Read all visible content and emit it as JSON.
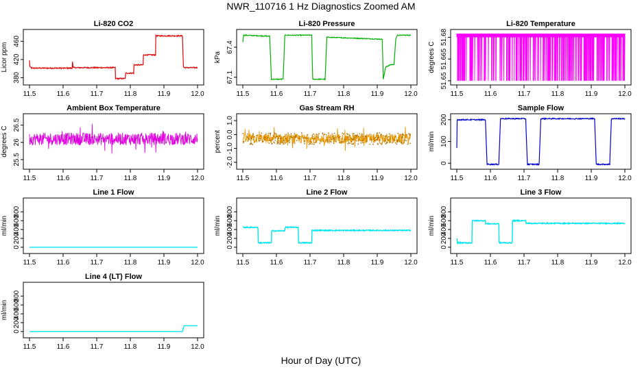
{
  "title": "NWR_110716  1 Hz Diagnostics Zoomed AM",
  "x_axis_title": "Hour of Day (UTC)",
  "chart_data": [
    {
      "type": "line",
      "title": "Li-820 CO2",
      "ylabel": "Licor ppm",
      "color": "#e00000",
      "xlim": [
        11.5,
        12.0
      ],
      "ylim": [
        370,
        480
      ],
      "xticks": [
        "11.5",
        "11.6",
        "11.7",
        "11.8",
        "11.9",
        "12.0"
      ],
      "yticks": [
        "380",
        "420",
        "460"
      ],
      "series": [
        {
          "x": [
            11.5,
            11.501,
            11.505,
            11.627,
            11.628,
            11.63,
            11.755,
            11.756,
            11.785,
            11.786,
            11.81,
            11.811,
            11.838,
            11.839,
            11.875,
            11.876,
            11.955,
            11.958,
            11.96,
            12.0
          ],
          "y": [
            418,
            405,
            401,
            401,
            415,
            402,
            402,
            378,
            378,
            390,
            390,
            408,
            408,
            430,
            430,
            472,
            472,
            405,
            402,
            402
          ]
        }
      ]
    },
    {
      "type": "line",
      "title": "Li-820 Pressure",
      "ylabel": "kPa",
      "color": "#00b000",
      "xlim": [
        11.5,
        12.0
      ],
      "ylim": [
        67.05,
        67.55
      ],
      "xticks": [
        "11.5",
        "11.6",
        "11.7",
        "11.8",
        "11.9",
        "12.0"
      ],
      "yticks": [
        "67.1",
        "67.4"
      ],
      "series": [
        {
          "x": [
            11.5,
            11.502,
            11.58,
            11.585,
            11.62,
            11.625,
            11.705,
            11.708,
            11.745,
            11.75,
            11.915,
            11.918,
            11.925,
            11.935,
            11.95,
            11.955,
            11.96,
            12.0
          ],
          "y": [
            67.45,
            67.52,
            67.51,
            67.08,
            67.08,
            67.52,
            67.52,
            67.08,
            67.08,
            67.5,
            67.48,
            67.08,
            67.2,
            67.22,
            67.23,
            67.48,
            67.52,
            67.52
          ]
        }
      ]
    },
    {
      "type": "line",
      "title": "Li-820 Temperature",
      "ylabel": "degrees C",
      "color": "#ff00ff",
      "xlim": [
        11.5,
        12.0
      ],
      "ylim": [
        51.649,
        51.6835
      ],
      "xticks": [
        "11.5",
        "11.6",
        "11.7",
        "11.8",
        "11.9",
        "12.0"
      ],
      "yticks": [
        "51.65",
        "51.665",
        "51.68"
      ],
      "series": [
        {
          "x": [
            11.5,
            12.0
          ],
          "y": [
            51.65,
            51.6825
          ]
        }
      ]
    },
    {
      "type": "line",
      "title": "Ambient Box Temperature",
      "ylabel": "degrees C",
      "color": "#e000e0",
      "xlim": [
        11.5,
        12.0
      ],
      "ylim": [
        25.3,
        26.75
      ],
      "xticks": [
        "11.5",
        "11.6",
        "11.7",
        "11.8",
        "11.9",
        "12.0"
      ],
      "yticks": [
        "25.5",
        "26",
        "26.5"
      ],
      "series": [
        {
          "x": [
            11.5,
            12.0
          ],
          "y": [
            26.1,
            26.05
          ]
        }
      ]
    },
    {
      "type": "line",
      "title": "Gas Stream RH",
      "ylabel": "percent",
      "color": "#e69500",
      "xlim": [
        11.5,
        12.0
      ],
      "ylim": [
        -2.3,
        1.3
      ],
      "xticks": [
        "11.5",
        "11.6",
        "11.7",
        "11.8",
        "11.9",
        "12.0"
      ],
      "yticks": [
        "-2.0",
        "-1.0",
        "0.0",
        "1.0"
      ],
      "series": [
        {
          "x": [
            11.5,
            12.0
          ],
          "y": [
            -0.3,
            -0.3
          ]
        }
      ]
    },
    {
      "type": "line",
      "title": "Sample Flow",
      "ylabel": "ml/min",
      "color": "#0000cc",
      "xlim": [
        11.5,
        12.0
      ],
      "ylim": [
        -15,
        215
      ],
      "xticks": [
        "11.5",
        "11.6",
        "11.7",
        "11.8",
        "11.9",
        "12.0"
      ],
      "yticks": [
        "0",
        "100",
        "200"
      ],
      "series": [
        {
          "x": [
            11.5,
            11.501,
            11.503,
            11.585,
            11.59,
            11.625,
            11.63,
            11.705,
            11.71,
            11.745,
            11.75,
            11.91,
            11.915,
            11.955,
            11.96,
            12.0
          ],
          "y": [
            70,
            200,
            200,
            200,
            -5,
            -5,
            205,
            205,
            -5,
            -5,
            205,
            205,
            -5,
            -5,
            205,
            205
          ]
        }
      ]
    },
    {
      "type": "line",
      "title": "Line 1 Flow",
      "ylabel": "ml/min",
      "color": "#00e5ee",
      "xlim": [
        11.5,
        12.0
      ],
      "ylim": [
        -80,
        1050
      ],
      "xticks": [
        "11.5",
        "11.6",
        "11.7",
        "11.8",
        "11.9",
        "12.0"
      ],
      "yticks": [
        "0",
        "200",
        "400",
        "600",
        "800"
      ],
      "series": [
        {
          "x": [
            11.5,
            12.0
          ],
          "y": [
            0,
            0
          ]
        }
      ]
    },
    {
      "type": "line",
      "title": "Line 2 Flow",
      "ylabel": "ml/min",
      "color": "#00e5ee",
      "xlim": [
        11.5,
        12.0
      ],
      "ylim": [
        -80,
        1050
      ],
      "xticks": [
        "11.5",
        "11.6",
        "11.7",
        "11.8",
        "11.9",
        "12.0"
      ],
      "yticks": [
        "0",
        "200",
        "400",
        "600",
        "800"
      ],
      "series": [
        {
          "x": [
            11.5,
            11.545,
            11.546,
            11.585,
            11.586,
            11.625,
            11.626,
            11.665,
            11.666,
            11.705,
            11.706,
            12.0
          ],
          "y": [
            450,
            450,
            100,
            100,
            370,
            370,
            450,
            450,
            100,
            100,
            380,
            380
          ]
        }
      ]
    },
    {
      "type": "line",
      "title": "Line 3 Flow",
      "ylabel": "ml/min",
      "color": "#00e5ee",
      "xlim": [
        11.5,
        12.0
      ],
      "ylim": [
        -80,
        1050
      ],
      "xticks": [
        "11.5",
        "11.6",
        "11.7",
        "11.8",
        "11.9",
        "12.0"
      ],
      "yticks": [
        "0",
        "200",
        "400",
        "600",
        "800"
      ],
      "series": [
        {
          "x": [
            11.5,
            11.502,
            11.504,
            11.545,
            11.546,
            11.585,
            11.586,
            11.625,
            11.626,
            11.665,
            11.666,
            11.705,
            11.706,
            12.0
          ],
          "y": [
            200,
            100,
            100,
            100,
            600,
            600,
            530,
            530,
            100,
            100,
            600,
            600,
            540,
            540
          ]
        }
      ]
    },
    {
      "type": "line",
      "title": "Line 4 (LT) Flow",
      "ylabel": "ml/min",
      "color": "#00e5ee",
      "xlim": [
        11.5,
        12.0
      ],
      "ylim": [
        -80,
        1050
      ],
      "xticks": [
        "11.5",
        "11.6",
        "11.7",
        "11.8",
        "11.9",
        "12.0"
      ],
      "yticks": [
        "0",
        "200",
        "400",
        "600",
        "800"
      ],
      "series": [
        {
          "x": [
            11.5,
            11.955,
            11.96,
            12.0
          ],
          "y": [
            0,
            0,
            130,
            130
          ]
        }
      ]
    }
  ]
}
